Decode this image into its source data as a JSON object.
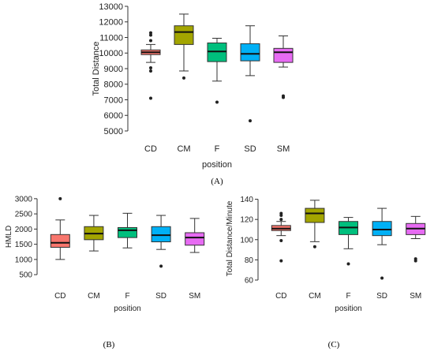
{
  "chart_data": [
    {
      "type": "boxplot",
      "panel_label": "(A)",
      "xlabel": "position",
      "ylabel": "Total Distance",
      "ylim": [
        5000,
        13000
      ],
      "yticks": [
        5000,
        6000,
        7000,
        8000,
        9000,
        10000,
        11000,
        12000,
        13000
      ],
      "categories": [
        "CD",
        "CM",
        "F",
        "SD",
        "SM"
      ],
      "boxes": [
        {
          "name": "CD",
          "color": "#F8766D",
          "whisker_low": 9400,
          "q1": 9900,
          "median": 10050,
          "q3": 10200,
          "whisker_high": 10550,
          "outliers": [
            7100,
            8850,
            9050,
            10800,
            11150,
            11300
          ]
        },
        {
          "name": "CM",
          "color": "#A3A500",
          "whisker_low": 8850,
          "q1": 10550,
          "median": 11350,
          "q3": 11750,
          "whisker_high": 12500,
          "outliers": [
            8400
          ]
        },
        {
          "name": "F",
          "color": "#00BF7D",
          "whisker_low": 8200,
          "q1": 9450,
          "median": 10100,
          "q3": 10650,
          "whisker_high": 10950,
          "outliers": [
            6850
          ]
        },
        {
          "name": "SD",
          "color": "#00B0F6",
          "whisker_low": 8550,
          "q1": 9500,
          "median": 9950,
          "q3": 10600,
          "whisker_high": 11750,
          "outliers": [
            5650
          ]
        },
        {
          "name": "SM",
          "color": "#E76BF3",
          "whisker_low": 9100,
          "q1": 9400,
          "median": 10050,
          "q3": 10300,
          "whisker_high": 11100,
          "outliers": [
            7150,
            7250
          ]
        }
      ]
    },
    {
      "type": "boxplot",
      "panel_label": "(B)",
      "xlabel": "position",
      "ylabel": "HMLD",
      "ylim": [
        400,
        3100
      ],
      "yticks": [
        500,
        1000,
        1500,
        2000,
        2500,
        3000
      ],
      "categories": [
        "CD",
        "CM",
        "F",
        "SD",
        "SM"
      ],
      "boxes": [
        {
          "name": "CD",
          "color": "#F8766D",
          "whisker_low": 1000,
          "q1": 1400,
          "median": 1550,
          "q3": 1820,
          "whisker_high": 2300,
          "outliers": [
            3000
          ]
        },
        {
          "name": "CM",
          "color": "#A3A500",
          "whisker_low": 1280,
          "q1": 1650,
          "median": 1850,
          "q3": 2080,
          "whisker_high": 2450,
          "outliers": []
        },
        {
          "name": "F",
          "color": "#00BF7D",
          "whisker_low": 1380,
          "q1": 1720,
          "median": 1960,
          "q3": 2050,
          "whisker_high": 2520,
          "outliers": []
        },
        {
          "name": "SD",
          "color": "#00B0F6",
          "whisker_low": 1330,
          "q1": 1580,
          "median": 1800,
          "q3": 2080,
          "whisker_high": 2450,
          "outliers": [
            780
          ]
        },
        {
          "name": "SM",
          "color": "#E76BF3",
          "whisker_low": 1230,
          "q1": 1470,
          "median": 1720,
          "q3": 1880,
          "whisker_high": 2350,
          "outliers": []
        }
      ]
    },
    {
      "type": "boxplot",
      "panel_label": "(C)",
      "xlabel": "position",
      "ylabel": "Total Distance/Minute",
      "ylim": [
        60,
        142
      ],
      "yticks": [
        60,
        80,
        100,
        120,
        140
      ],
      "categories": [
        "CD",
        "CM",
        "F",
        "SD",
        "SM"
      ],
      "boxes": [
        {
          "name": "CD",
          "color": "#F8766D",
          "whisker_low": 104,
          "q1": 109,
          "median": 111,
          "q3": 114,
          "whisker_high": 118,
          "outliers": [
            79,
            99,
            120,
            124,
            126
          ]
        },
        {
          "name": "CM",
          "color": "#A3A500",
          "whisker_low": 98,
          "q1": 117,
          "median": 126,
          "q3": 131,
          "whisker_high": 139,
          "outliers": [
            93
          ]
        },
        {
          "name": "F",
          "color": "#00BF7D",
          "whisker_low": 91,
          "q1": 105,
          "median": 112,
          "q3": 118,
          "whisker_high": 122,
          "outliers": [
            76
          ]
        },
        {
          "name": "SD",
          "color": "#00B0F6",
          "whisker_low": 95,
          "q1": 104,
          "median": 110,
          "q3": 118,
          "whisker_high": 131,
          "outliers": [
            62
          ]
        },
        {
          "name": "SM",
          "color": "#E76BF3",
          "whisker_low": 101,
          "q1": 105,
          "median": 111,
          "q3": 116,
          "whisker_high": 123,
          "outliers": [
            79,
            81
          ]
        }
      ]
    }
  ]
}
